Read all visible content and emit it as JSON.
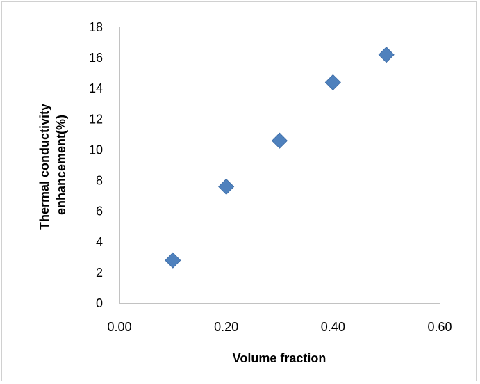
{
  "chart_data": {
    "type": "scatter",
    "title": "",
    "xlabel": "Volume fraction",
    "ylabel_lines": [
      "Thermal conductivity",
      "enhancement(%)"
    ],
    "x_ticks": [
      "0.00",
      "0.20",
      "0.40",
      "0.60"
    ],
    "y_ticks": [
      "0",
      "2",
      "4",
      "6",
      "8",
      "10",
      "12",
      "14",
      "16",
      "18"
    ],
    "xlim": [
      0,
      0.6
    ],
    "ylim": [
      0,
      18
    ],
    "x_tick_values": [
      0,
      0.2,
      0.4,
      0.6
    ],
    "y_tick_values": [
      0,
      2,
      4,
      6,
      8,
      10,
      12,
      14,
      16,
      18
    ],
    "marker": "diamond",
    "color": "#4f81bd",
    "series": [
      {
        "x": [
          0.1,
          0.2,
          0.3,
          0.4,
          0.5
        ],
        "y": [
          2.8,
          7.6,
          10.6,
          14.4,
          16.2
        ]
      }
    ]
  }
}
